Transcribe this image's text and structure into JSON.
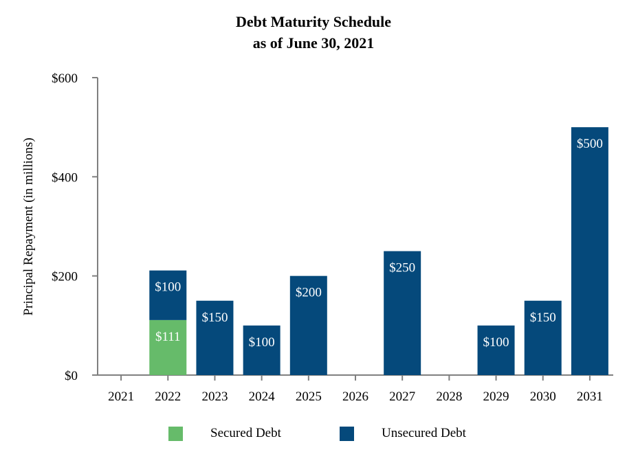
{
  "chart_data": {
    "type": "bar",
    "stacked": true,
    "title": "Debt Maturity Schedule",
    "subtitle": "as of June 30, 2021",
    "xlabel": "",
    "ylabel": "Principal Repayment (in millions)",
    "ylim": [
      0,
      600
    ],
    "yticks": [
      0,
      200,
      400,
      600
    ],
    "ytick_labels": [
      "$0",
      "$200",
      "$400",
      "$600"
    ],
    "categories": [
      "2021",
      "2022",
      "2023",
      "2024",
      "2025",
      "2026",
      "2027",
      "2028",
      "2029",
      "2030",
      "2031"
    ],
    "series": [
      {
        "name": "Secured Debt",
        "color": "#66bb6a",
        "values": [
          0,
          111,
          0,
          0,
          0,
          0,
          0,
          0,
          0,
          0,
          0
        ],
        "labels": [
          "",
          "$111",
          "",
          "",
          "",
          "",
          "",
          "",
          "",
          "",
          ""
        ]
      },
      {
        "name": "Unsecured Debt",
        "color": "#05497b",
        "values": [
          0,
          100,
          150,
          100,
          200,
          0,
          250,
          0,
          100,
          150,
          500
        ],
        "labels": [
          "",
          "$100",
          "$150",
          "$100",
          "$200",
          "",
          "$250",
          "",
          "$100",
          "$150",
          "$500"
        ]
      }
    ],
    "grid": false,
    "legend_position": "bottom"
  }
}
